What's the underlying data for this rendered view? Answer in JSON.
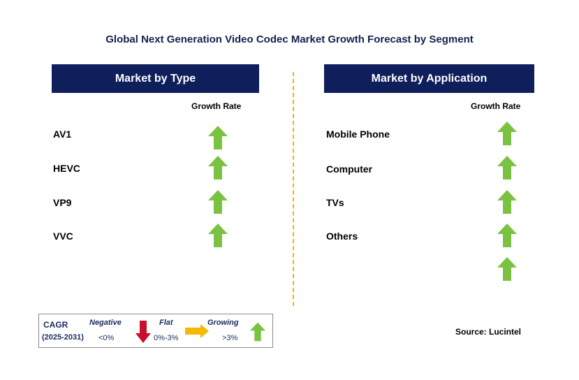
{
  "title": "Global Next Generation Video Codec Market Growth Forecast by Segment",
  "left": {
    "header": "Market by Type",
    "growth_label": "Growth Rate",
    "items": [
      "AV1",
      "HEVC",
      "VP9",
      "VVC"
    ]
  },
  "right": {
    "header": "Market by Application",
    "growth_label": "Growth Rate",
    "items": [
      "Mobile Phone",
      "Computer",
      "TVs",
      "Others"
    ]
  },
  "legend": {
    "cagr": "CAGR",
    "period": "(2025-2031)",
    "negative": "Negative",
    "negative_range": "<0%",
    "flat": "Flat",
    "flat_range": "0%-3%",
    "growing": "Growing",
    "growing_range": ">3%"
  },
  "source": "Source: Lucintel",
  "colors": {
    "header_bg": "#0e1f5b",
    "up": "#7cc242",
    "down": "#c8102e",
    "flat": "#f5b800",
    "divider": "#f0b400"
  }
}
